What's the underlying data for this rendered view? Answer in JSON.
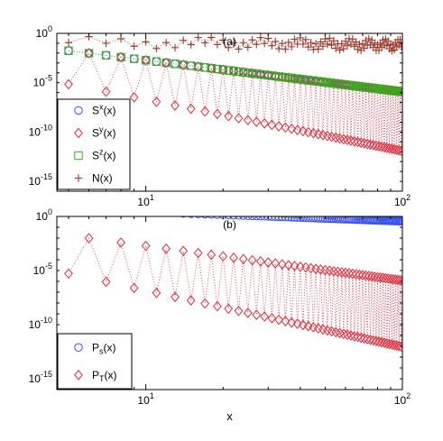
{
  "chart_data": [
    {
      "type": "scatter",
      "panel_label": "(a)",
      "xlabel": "",
      "ylabel": "",
      "xscale": "log",
      "yscale": "log",
      "xlim": [
        4.5,
        100
      ],
      "ylim": [
        1e-16,
        1
      ],
      "x_ticks": [
        {
          "value": 10,
          "base": "10",
          "exp": "1"
        },
        {
          "value": 100,
          "base": "10",
          "exp": "2"
        }
      ],
      "y_ticks": [
        {
          "value": 1,
          "base": "10",
          "exp": "0"
        },
        {
          "value": 1e-05,
          "base": "10",
          "exp": "-5"
        },
        {
          "value": 1e-10,
          "base": "10",
          "exp": "-10"
        },
        {
          "value": 1e-15,
          "base": "10",
          "exp": "-15"
        }
      ],
      "legend_position": "bottom-left",
      "series": [
        {
          "name": "x",
          "label_main": "S",
          "label_sup": "x",
          "label_tail": "(x)",
          "marker": "circle",
          "color": "#3a52e6",
          "model": {
            "kind": "smooth",
            "a": 0.03,
            "p": 3.2,
            "x0": 5,
            "x1": 100,
            "step": 1.0
          }
        },
        {
          "name": "y",
          "label_main": "S",
          "label_sup": "y",
          "label_tail": "(x)",
          "marker": "diamond",
          "color": "#e02a3a",
          "model": {
            "kind": "oscillating",
            "a": 0.03,
            "p": 3.2,
            "dip": 0.0004,
            "dipP": 2.0,
            "x0": 5,
            "x1": 100,
            "step": 1.0
          }
        },
        {
          "name": "z",
          "label_main": "S",
          "label_sup": "z",
          "label_tail": "(x)",
          "marker": "square",
          "color": "#3caa1e",
          "model": {
            "kind": "smooth",
            "a": 0.03,
            "p": 3.2,
            "x0": 5,
            "x1": 100,
            "step": 1.0
          }
        },
        {
          "name": "N",
          "label_main": "N(x)",
          "label_sup": "",
          "label_tail": "",
          "marker": "plus",
          "color": "#9a3a2c",
          "model": {
            "kind": "beats",
            "a": 0.5,
            "b": 0.01,
            "x0": 5,
            "x1": 100,
            "step": 1.0
          }
        }
      ]
    },
    {
      "type": "scatter",
      "panel_label": "(b)",
      "xlabel": "x",
      "ylabel": "",
      "xscale": "log",
      "yscale": "log",
      "xlim": [
        4.5,
        100
      ],
      "ylim": [
        1e-16,
        1
      ],
      "x_ticks": [
        {
          "value": 10,
          "base": "10",
          "exp": "1"
        },
        {
          "value": 100,
          "base": "10",
          "exp": "2"
        }
      ],
      "y_ticks": [
        {
          "value": 1,
          "base": "10",
          "exp": "0"
        },
        {
          "value": 1e-05,
          "base": "10",
          "exp": "-5"
        },
        {
          "value": 1e-10,
          "base": "10",
          "exp": "-10"
        },
        {
          "value": 1e-15,
          "base": "10",
          "exp": "-15"
        }
      ],
      "legend_position": "bottom-left",
      "series": [
        {
          "name": "s",
          "label_main": "P",
          "label_sub": "s",
          "label_tail": "(x)",
          "marker": "circle",
          "color": "#3a52e6",
          "model": {
            "kind": "smooth",
            "a": 0.18,
            "p": 0.85,
            "x0": 5,
            "x1": 100,
            "step": 1.0
          }
        },
        {
          "name": "T",
          "label_main": "P",
          "label_sub": "T",
          "label_tail": "(x)",
          "marker": "diamond",
          "color": "#e02a3a",
          "model": {
            "kind": "oscillating",
            "a": 0.03,
            "p": 3.2,
            "dip": 0.0003,
            "dipP": 2.0,
            "x0": 5,
            "x1": 100,
            "step": 1.0
          }
        }
      ]
    }
  ]
}
